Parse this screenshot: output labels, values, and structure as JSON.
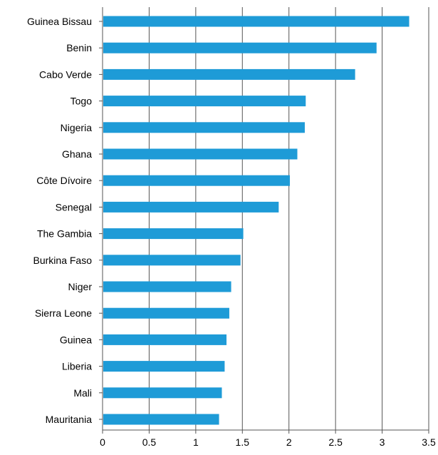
{
  "chart_data": {
    "type": "bar",
    "orientation": "horizontal",
    "categories": [
      "Guinea Bissau",
      "Benin",
      "Cabo Verde",
      "Togo",
      "Nigeria",
      "Ghana",
      "Côte Dívoire",
      "Senegal",
      "The Gambia",
      "Burkina Faso",
      "Niger",
      "Sierra Leone",
      "Guinea",
      "Liberia",
      "Mali",
      "Mauritania"
    ],
    "values": [
      3.29,
      2.94,
      2.71,
      2.18,
      2.17,
      2.09,
      2.01,
      1.89,
      1.51,
      1.48,
      1.38,
      1.36,
      1.33,
      1.31,
      1.28,
      1.25
    ],
    "xlim": [
      0,
      3.5
    ],
    "xticks": [
      "0",
      "0.5",
      "1",
      "1.5",
      "2",
      "2.5",
      "3",
      "3.5"
    ],
    "title": "",
    "xlabel": "",
    "ylabel": "",
    "grid": "vertical",
    "bar_color": "#1e9bd7",
    "grid_color": "#555555",
    "legend": "none"
  }
}
